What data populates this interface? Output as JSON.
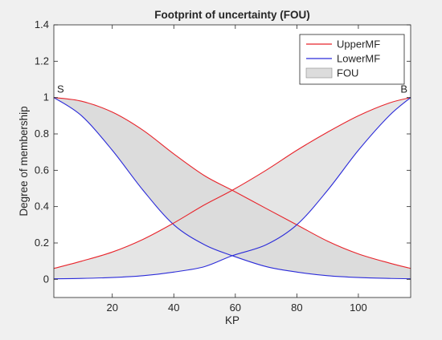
{
  "chart_data": {
    "type": "area",
    "title": "Footprint of uncertainty (FOU)",
    "xlabel": "KP",
    "ylabel": "Degree of membership",
    "xlim": [
      1,
      117
    ],
    "ylim": [
      -0.1,
      1.4
    ],
    "xticks": [
      20,
      40,
      60,
      80,
      100
    ],
    "yticks": [
      0,
      0.2,
      0.4,
      0.6,
      0.8,
      1,
      1.2,
      1.4
    ],
    "grid": false,
    "legend_position": "top-right",
    "legend": [
      {
        "label": "UpperMF",
        "kind": "line",
        "color": "#e8242b"
      },
      {
        "label": "LowerMF",
        "kind": "line",
        "color": "#2b2bd9"
      },
      {
        "label": "FOU",
        "kind": "patch",
        "color": "#dcdcdc"
      }
    ],
    "annotations": [
      {
        "text": "S",
        "x": 1,
        "y": 1
      },
      {
        "text": "B",
        "x": 117,
        "y": 1
      }
    ],
    "series": [
      {
        "label_ref": "legend.0",
        "color": "#e8242b",
        "x": [
          1,
          10,
          20,
          30,
          40,
          50,
          59,
          70,
          80,
          90,
          100,
          110,
          117
        ],
        "values": [
          1.0,
          0.98,
          0.92,
          0.82,
          0.69,
          0.57,
          0.49,
          0.39,
          0.3,
          0.21,
          0.14,
          0.09,
          0.06
        ]
      },
      {
        "label_ref": "legend.1",
        "color": "#2b2bd9",
        "x": [
          1,
          10,
          20,
          30,
          40,
          50,
          59,
          70,
          80,
          90,
          100,
          110,
          117
        ],
        "values": [
          1.0,
          0.9,
          0.71,
          0.49,
          0.3,
          0.19,
          0.13,
          0.07,
          0.04,
          0.02,
          0.01,
          0.005,
          0.003
        ]
      },
      {
        "label_ref": "legend.0",
        "color": "#e8242b",
        "x": [
          1,
          10,
          20,
          30,
          40,
          50,
          59,
          70,
          80,
          90,
          100,
          110,
          117
        ],
        "values": [
          0.06,
          0.1,
          0.15,
          0.22,
          0.31,
          0.41,
          0.49,
          0.6,
          0.71,
          0.81,
          0.9,
          0.97,
          1.0
        ]
      },
      {
        "label_ref": "legend.1",
        "color": "#2b2bd9",
        "x": [
          1,
          10,
          20,
          30,
          40,
          50,
          59,
          70,
          80,
          90,
          100,
          110,
          117
        ],
        "values": [
          0.003,
          0.005,
          0.01,
          0.02,
          0.04,
          0.07,
          0.13,
          0.19,
          0.3,
          0.49,
          0.71,
          0.9,
          1.0
        ]
      }
    ],
    "fou_fill": "#dcdcdc",
    "fou_overlap_fill": "#c6c6c6"
  }
}
